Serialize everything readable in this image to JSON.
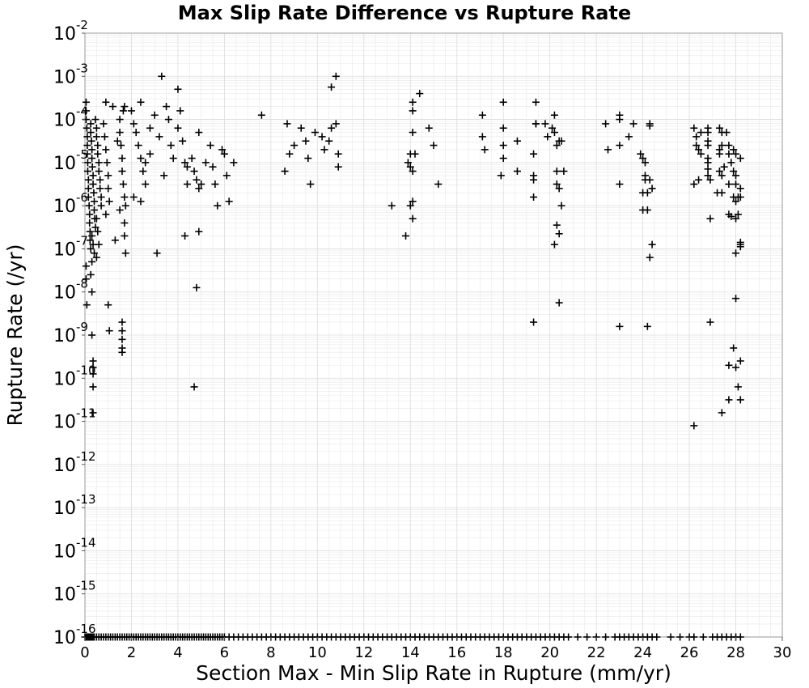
{
  "chart_data": {
    "type": "scatter",
    "title": "Max Slip Rate Difference vs Rupture Rate",
    "xlabel": "Section Max - Min Slip Rate in Rupture (mm/yr)",
    "ylabel": "Rupture Rate (/yr)",
    "xlim": [
      0,
      30
    ],
    "ylim": [
      1e-16,
      0.01
    ],
    "y_scale": "log",
    "grid": true,
    "marker": "plus",
    "color": "#000000",
    "x_ticks": [
      "0",
      "2",
      "4",
      "6",
      "8",
      "10",
      "12",
      "14",
      "16",
      "18",
      "20",
      "22",
      "24",
      "26",
      "28",
      "30"
    ],
    "y_ticks": [
      {
        "base": "10",
        "exp": "-16"
      },
      {
        "base": "10",
        "exp": "-15"
      },
      {
        "base": "10",
        "exp": "-14"
      },
      {
        "base": "10",
        "exp": "-13"
      },
      {
        "base": "10",
        "exp": "-12"
      },
      {
        "base": "10",
        "exp": "-11"
      },
      {
        "base": "10",
        "exp": "-10"
      },
      {
        "base": "10",
        "exp": "-9"
      },
      {
        "base": "10",
        "exp": "-8"
      },
      {
        "base": "10",
        "exp": "-7"
      },
      {
        "base": "10",
        "exp": "-6"
      },
      {
        "base": "10",
        "exp": "-5"
      },
      {
        "base": "10",
        "exp": "-4"
      },
      {
        "base": "10",
        "exp": "-3"
      },
      {
        "base": "10",
        "exp": "-2"
      }
    ],
    "zero_rate_x": [
      0.0,
      0.05,
      0.1,
      0.15,
      0.2,
      0.25,
      0.3,
      0.35,
      0.4,
      0.5,
      0.6,
      0.7,
      0.8,
      0.9,
      1.0,
      1.1,
      1.2,
      1.3,
      1.4,
      1.5,
      1.6,
      1.7,
      1.8,
      1.9,
      2.0,
      2.1,
      2.2,
      2.3,
      2.4,
      2.5,
      2.6,
      2.7,
      2.8,
      2.9,
      3.0,
      3.1,
      3.2,
      3.3,
      3.4,
      3.5,
      3.6,
      3.7,
      3.8,
      3.9,
      4.0,
      4.1,
      4.2,
      4.3,
      4.4,
      4.5,
      4.6,
      4.7,
      4.8,
      4.9,
      5.0,
      5.1,
      5.2,
      5.3,
      5.4,
      5.5,
      5.6,
      5.7,
      5.8,
      5.9,
      6.0,
      6.2,
      6.4,
      6.6,
      6.8,
      7.0,
      7.2,
      7.4,
      7.6,
      7.8,
      8.0,
      8.2,
      8.4,
      8.6,
      8.8,
      9.0,
      9.2,
      9.4,
      9.6,
      9.8,
      10.0,
      10.2,
      10.4,
      10.6,
      10.8,
      11.0,
      11.2,
      11.4,
      11.6,
      11.8,
      12.0,
      12.2,
      12.4,
      12.6,
      12.8,
      13.0,
      13.2,
      13.4,
      13.6,
      13.8,
      14.0,
      14.2,
      14.4,
      14.6,
      14.8,
      15.0,
      15.2,
      15.4,
      15.6,
      15.8,
      16.0,
      16.2,
      16.4,
      16.6,
      16.8,
      17.0,
      17.2,
      17.4,
      17.6,
      17.8,
      18.0,
      18.2,
      18.4,
      18.6,
      18.8,
      19.0,
      19.2,
      19.4,
      19.6,
      19.8,
      20.0,
      20.2,
      20.4,
      20.6,
      20.8,
      21.2,
      21.6,
      22.0,
      22.4,
      22.8,
      23.0,
      23.2,
      23.4,
      23.6,
      23.8,
      24.0,
      24.2,
      24.4,
      24.6,
      25.2,
      25.6,
      26.0,
      26.2,
      26.6,
      27.0,
      27.2,
      27.4,
      27.6,
      27.8,
      28.0,
      28.2
    ],
    "points": [
      [
        0.05,
        -3.6
      ],
      [
        0.05,
        -3.8
      ],
      [
        0.05,
        -4.0
      ],
      [
        0.08,
        -4.2
      ],
      [
        0.1,
        -4.4
      ],
      [
        0.1,
        -4.6
      ],
      [
        0.1,
        -4.8
      ],
      [
        0.12,
        -5.0
      ],
      [
        0.12,
        -5.2
      ],
      [
        0.15,
        -5.4
      ],
      [
        0.15,
        -5.6
      ],
      [
        0.15,
        -5.8
      ],
      [
        0.18,
        -6.0
      ],
      [
        0.2,
        -6.2
      ],
      [
        0.2,
        -6.4
      ],
      [
        0.22,
        -6.6
      ],
      [
        0.22,
        -6.8
      ],
      [
        0.25,
        -7.0
      ],
      [
        0.05,
        -7.4
      ],
      [
        0.05,
        -7.7
      ],
      [
        0.08,
        -8.3
      ],
      [
        0.25,
        -4.1
      ],
      [
        0.25,
        -4.3
      ],
      [
        0.28,
        -4.5
      ],
      [
        0.3,
        -4.7
      ],
      [
        0.3,
        -4.9
      ],
      [
        0.32,
        -5.1
      ],
      [
        0.35,
        -5.3
      ],
      [
        0.35,
        -5.5
      ],
      [
        0.38,
        -5.7
      ],
      [
        0.4,
        -5.9
      ],
      [
        0.4,
        -6.1
      ],
      [
        0.42,
        -6.3
      ],
      [
        0.45,
        -6.5
      ],
      [
        0.3,
        -6.7
      ],
      [
        0.35,
        -6.9
      ],
      [
        0.4,
        -7.1
      ],
      [
        0.3,
        -7.3
      ],
      [
        0.25,
        -7.6
      ],
      [
        0.3,
        -8.0
      ],
      [
        0.3,
        -9.0
      ],
      [
        0.35,
        -9.6
      ],
      [
        0.35,
        -9.75
      ],
      [
        0.35,
        -9.9
      ],
      [
        0.35,
        -10.2
      ],
      [
        0.35,
        -10.8
      ],
      [
        0.45,
        -4.0
      ],
      [
        0.5,
        -4.2
      ],
      [
        0.5,
        -4.4
      ],
      [
        0.55,
        -4.6
      ],
      [
        0.55,
        -4.8
      ],
      [
        0.6,
        -5.0
      ],
      [
        0.6,
        -5.2
      ],
      [
        0.65,
        -5.4
      ],
      [
        0.65,
        -5.6
      ],
      [
        0.7,
        -5.8
      ],
      [
        0.7,
        -6.0
      ],
      [
        0.5,
        -6.3
      ],
      [
        0.55,
        -6.6
      ],
      [
        0.6,
        -6.9
      ],
      [
        0.5,
        -7.2
      ],
      [
        0.8,
        -4.1
      ],
      [
        0.85,
        -4.4
      ],
      [
        0.9,
        -4.7
      ],
      [
        0.95,
        -5.0
      ],
      [
        1.0,
        -5.3
      ],
      [
        1.0,
        -5.6
      ],
      [
        1.05,
        -5.9
      ],
      [
        0.9,
        -6.2
      ],
      [
        1.0,
        -8.3
      ],
      [
        1.05,
        -8.9
      ],
      [
        1.3,
        -6.8
      ],
      [
        1.4,
        -4.5
      ],
      [
        1.2,
        -3.7
      ],
      [
        0.9,
        -3.6
      ],
      [
        1.5,
        -4.0
      ],
      [
        1.5,
        -4.3
      ],
      [
        1.55,
        -4.6
      ],
      [
        1.6,
        -4.9
      ],
      [
        1.6,
        -5.2
      ],
      [
        1.65,
        -5.5
      ],
      [
        1.7,
        -5.8
      ],
      [
        1.5,
        -6.1
      ],
      [
        1.7,
        -6.4
      ],
      [
        1.7,
        -6.7
      ],
      [
        1.75,
        -7.1
      ],
      [
        1.65,
        -3.8
      ],
      [
        1.7,
        -3.7
      ],
      [
        1.6,
        -8.7
      ],
      [
        1.6,
        -8.9
      ],
      [
        1.6,
        -9.1
      ],
      [
        1.6,
        -9.3
      ],
      [
        1.6,
        -9.4
      ],
      [
        1.75,
        -6.0
      ],
      [
        2.0,
        -3.8
      ],
      [
        2.1,
        -4.1
      ],
      [
        2.2,
        -4.3
      ],
      [
        2.3,
        -4.6
      ],
      [
        2.4,
        -4.9
      ],
      [
        2.5,
        -5.2
      ],
      [
        2.6,
        -5.5
      ],
      [
        2.1,
        -5.8
      ],
      [
        2.4,
        -5.9
      ],
      [
        2.6,
        -5.0
      ],
      [
        2.8,
        -4.2
      ],
      [
        2.8,
        -4.8
      ],
      [
        2.4,
        -3.6
      ],
      [
        3.0,
        -3.9
      ],
      [
        3.2,
        -4.4
      ],
      [
        3.3,
        -3.0
      ],
      [
        3.4,
        -5.3
      ],
      [
        3.5,
        -3.7
      ],
      [
        3.6,
        -4.0
      ],
      [
        3.7,
        -4.6
      ],
      [
        3.8,
        -4.9
      ],
      [
        4.0,
        -3.3
      ],
      [
        4.0,
        -4.2
      ],
      [
        4.1,
        -3.8
      ],
      [
        4.2,
        -4.5
      ],
      [
        4.3,
        -5.0
      ],
      [
        4.4,
        -5.1
      ],
      [
        4.6,
        -4.9
      ],
      [
        4.7,
        -5.2
      ],
      [
        4.8,
        -5.4
      ],
      [
        4.9,
        -5.6
      ],
      [
        5.0,
        -5.5
      ],
      [
        5.2,
        -5.0
      ],
      [
        5.4,
        -4.6
      ],
      [
        5.5,
        -5.1
      ],
      [
        5.6,
        -5.5
      ],
      [
        5.7,
        -6.0
      ],
      [
        5.9,
        -4.7
      ],
      [
        6.0,
        -4.8
      ],
      [
        6.1,
        -5.3
      ],
      [
        6.2,
        -5.9
      ],
      [
        6.4,
        -5.0
      ],
      [
        4.3,
        -6.7
      ],
      [
        4.9,
        -6.6
      ],
      [
        4.8,
        -7.9
      ],
      [
        4.7,
        -10.2
      ],
      [
        3.1,
        -7.1
      ],
      [
        4.4,
        -5.5
      ],
      [
        4.9,
        -4.3
      ],
      [
        7.6,
        -3.9
      ],
      [
        8.7,
        -4.1
      ],
      [
        8.8,
        -4.8
      ],
      [
        8.6,
        -5.2
      ],
      [
        9.0,
        -4.6
      ],
      [
        9.3,
        -4.2
      ],
      [
        9.5,
        -4.5
      ],
      [
        9.6,
        -4.9
      ],
      [
        9.7,
        -5.5
      ],
      [
        9.9,
        -4.3
      ],
      [
        10.2,
        -4.4
      ],
      [
        10.3,
        -4.7
      ],
      [
        10.5,
        -4.5
      ],
      [
        10.6,
        -4.2
      ],
      [
        10.8,
        -3.0
      ],
      [
        10.6,
        -3.25
      ],
      [
        10.9,
        -4.8
      ],
      [
        10.9,
        -5.1
      ],
      [
        10.8,
        -4.1
      ],
      [
        13.2,
        -6.0
      ],
      [
        13.8,
        -6.7
      ],
      [
        13.9,
        -5.0
      ],
      [
        14.0,
        -4.8
      ],
      [
        14.0,
        -5.1
      ],
      [
        14.0,
        -6.0
      ],
      [
        14.1,
        -6.3
      ],
      [
        14.1,
        -5.9
      ],
      [
        14.1,
        -5.2
      ],
      [
        14.1,
        -4.3
      ],
      [
        14.1,
        -3.8
      ],
      [
        14.1,
        -3.6
      ],
      [
        14.2,
        -4.8
      ],
      [
        14.4,
        -3.4
      ],
      [
        14.8,
        -4.2
      ],
      [
        15.0,
        -4.6
      ],
      [
        15.2,
        -5.5
      ],
      [
        17.1,
        -3.9
      ],
      [
        17.1,
        -4.4
      ],
      [
        17.2,
        -4.7
      ],
      [
        17.9,
        -5.3
      ],
      [
        18.0,
        -3.6
      ],
      [
        18.0,
        -4.2
      ],
      [
        18.0,
        -4.6
      ],
      [
        18.0,
        -4.9
      ],
      [
        18.6,
        -4.5
      ],
      [
        18.6,
        -5.2
      ],
      [
        19.3,
        -5.3
      ],
      [
        19.3,
        -5.4
      ],
      [
        19.3,
        -5.8
      ],
      [
        19.4,
        -4.1
      ],
      [
        19.3,
        -4.8
      ],
      [
        19.4,
        -3.6
      ],
      [
        19.4,
        -4.1
      ],
      [
        19.3,
        -8.7
      ],
      [
        19.8,
        -4.1
      ],
      [
        19.9,
        -4.4
      ],
      [
        20.1,
        -4.2
      ],
      [
        20.2,
        -3.9
      ],
      [
        20.3,
        -5.2
      ],
      [
        20.3,
        -5.5
      ],
      [
        20.2,
        -4.3
      ],
      [
        20.3,
        -4.6
      ],
      [
        20.4,
        -4.5
      ],
      [
        20.4,
        -5.6
      ],
      [
        20.5,
        -6.0
      ],
      [
        20.6,
        -5.2
      ],
      [
        20.3,
        -6.45
      ],
      [
        20.4,
        -6.65
      ],
      [
        20.4,
        -8.25
      ],
      [
        20.2,
        -6.9
      ],
      [
        20.5,
        -4.5
      ],
      [
        22.4,
        -4.1
      ],
      [
        22.5,
        -4.7
      ],
      [
        23.0,
        -3.9
      ],
      [
        23.0,
        -4.0
      ],
      [
        23.0,
        -4.6
      ],
      [
        23.0,
        -5.5
      ],
      [
        23.0,
        -8.8
      ],
      [
        23.4,
        -4.4
      ],
      [
        23.6,
        -4.1
      ],
      [
        23.9,
        -4.8
      ],
      [
        24.0,
        -5.7
      ],
      [
        24.0,
        -6.1
      ],
      [
        24.1,
        -5.0
      ],
      [
        24.1,
        -5.3
      ],
      [
        24.1,
        -5.4
      ],
      [
        24.2,
        -5.7
      ],
      [
        24.2,
        -6.1
      ],
      [
        24.3,
        -4.1
      ],
      [
        24.3,
        -4.15
      ],
      [
        24.3,
        -5.4
      ],
      [
        24.4,
        -5.6
      ],
      [
        24.4,
        -6.9
      ],
      [
        24.3,
        -7.2
      ],
      [
        24.2,
        -8.8
      ],
      [
        24.0,
        -4.9
      ],
      [
        26.2,
        -4.2
      ],
      [
        26.3,
        -4.4
      ],
      [
        26.3,
        -4.6
      ],
      [
        26.2,
        -5.5
      ],
      [
        26.4,
        -4.7
      ],
      [
        26.4,
        -5.4
      ],
      [
        26.5,
        -4.3
      ],
      [
        26.5,
        -4.8
      ],
      [
        26.2,
        -11.1
      ],
      [
        26.8,
        -4.2
      ],
      [
        26.8,
        -4.3
      ],
      [
        26.8,
        -4.5
      ],
      [
        26.8,
        -4.6
      ],
      [
        26.8,
        -4.9
      ],
      [
        26.8,
        -5.0
      ],
      [
        26.8,
        -5.15
      ],
      [
        26.8,
        -5.3
      ],
      [
        26.9,
        -5.4
      ],
      [
        26.9,
        -6.3
      ],
      [
        26.9,
        -8.7
      ],
      [
        27.2,
        -5.7
      ],
      [
        27.3,
        -4.2
      ],
      [
        27.3,
        -4.7
      ],
      [
        27.3,
        -4.8
      ],
      [
        27.3,
        -5.2
      ],
      [
        27.4,
        -4.3
      ],
      [
        27.4,
        -4.6
      ],
      [
        27.4,
        -5.3
      ],
      [
        27.4,
        -5.7
      ],
      [
        27.4,
        -10.8
      ],
      [
        27.5,
        -5.1
      ],
      [
        27.6,
        -4.3
      ],
      [
        27.7,
        -4.6
      ],
      [
        27.7,
        -4.8
      ],
      [
        27.7,
        -5.5
      ],
      [
        27.7,
        -6.2
      ],
      [
        27.7,
        -9.7
      ],
      [
        27.7,
        -10.5
      ],
      [
        27.8,
        -5.0
      ],
      [
        27.8,
        -6.25
      ],
      [
        27.9,
        -4.7
      ],
      [
        27.9,
        -5.2
      ],
      [
        27.9,
        -5.8
      ],
      [
        27.9,
        -9.3
      ],
      [
        28.0,
        -4.8
      ],
      [
        28.0,
        -5.3
      ],
      [
        28.0,
        -5.5
      ],
      [
        28.0,
        -5.9
      ],
      [
        28.0,
        -6.3
      ],
      [
        28.0,
        -7.1
      ],
      [
        28.0,
        -8.15
      ],
      [
        28.0,
        -9.75
      ],
      [
        28.1,
        -5.8
      ],
      [
        28.1,
        -6.2
      ],
      [
        28.1,
        -10.2
      ],
      [
        28.2,
        -4.9
      ],
      [
        28.2,
        -5.6
      ],
      [
        28.2,
        -5.8
      ],
      [
        28.2,
        -9.6
      ],
      [
        28.2,
        -10.5
      ],
      [
        28.2,
        -6.9
      ],
      [
        28.2,
        -6.95
      ],
      [
        28.2,
        -6.85
      ]
    ]
  }
}
